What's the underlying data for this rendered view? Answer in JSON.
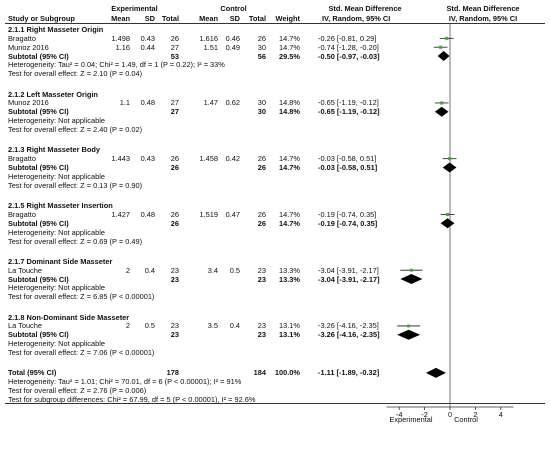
{
  "header": {
    "experimental": "Experimental",
    "control": "Control",
    "smd_left": "Std. Mean Difference",
    "smd_right": "Std. Mean Difference",
    "study_col": "Study or Subgroup",
    "mean1": "Mean",
    "sd1": "SD",
    "total1": "Total",
    "mean2": "Mean",
    "sd2": "SD",
    "total2": "Total",
    "weight": "Weight",
    "ci_left": "IV, Random, 95% CI",
    "ci_right": "IV, Random, 95% CI"
  },
  "rows": [
    {
      "kind": "group",
      "label": "2.1.1 Right Masseter Origin"
    },
    {
      "kind": "study",
      "label": "Bragatto",
      "m1": "1.498",
      "s1": "0.43",
      "n1": "26",
      "m2": "1.616",
      "s2": "0.46",
      "n2": "26",
      "w": "14.7%",
      "ci": "-0.26 [-0.81, 0.29]"
    },
    {
      "kind": "study",
      "label": "Munoz 2016",
      "m1": "1.16",
      "s1": "0.44",
      "n1": "27",
      "m2": "1.51",
      "s2": "0.49",
      "n2": "30",
      "w": "14.7%",
      "ci": "-0.74 [-1.28, -0.20]"
    },
    {
      "kind": "subtotal",
      "label": "Subtotal (95% CI)",
      "n1": "53",
      "n2": "56",
      "w": "29.5%",
      "ci": "-0.50 [-0.97, -0.03]"
    },
    {
      "kind": "note",
      "label": "Heterogeneity: Tau² = 0.04; Chi² = 1.49, df = 1 (P = 0.22); I² = 33%"
    },
    {
      "kind": "note",
      "label": "Test for overall effect: Z = 2.10 (P = 0.04)"
    },
    {
      "kind": "gap"
    },
    {
      "kind": "group",
      "label": "2.1.2 Left Masseter Origin"
    },
    {
      "kind": "study",
      "label": "Munoz 2016",
      "m1": "1.1",
      "s1": "0.48",
      "n1": "27",
      "m2": "1.47",
      "s2": "0.62",
      "n2": "30",
      "w": "14.8%",
      "ci": "-0.65 [-1.19, -0.12]"
    },
    {
      "kind": "subtotal",
      "label": "Subtotal (95% CI)",
      "n1": "27",
      "n2": "30",
      "w": "14.8%",
      "ci": "-0.65 [-1.19, -0.12]"
    },
    {
      "kind": "note",
      "label": "Heterogeneity: Not applicable"
    },
    {
      "kind": "note",
      "label": "Test for overall effect: Z = 2.40 (P = 0.02)"
    },
    {
      "kind": "gap"
    },
    {
      "kind": "group",
      "label": "2.1.3 Right Masseter Body"
    },
    {
      "kind": "study",
      "label": "Bragatto",
      "m1": "1.443",
      "s1": "0.43",
      "n1": "26",
      "m2": "1.458",
      "s2": "0.42",
      "n2": "26",
      "w": "14.7%",
      "ci": "-0.03 [-0.58, 0.51]"
    },
    {
      "kind": "subtotal",
      "label": "Subtotal (95% CI)",
      "n1": "26",
      "n2": "26",
      "w": "14.7%",
      "ci": "-0.03 [-0.58, 0.51]"
    },
    {
      "kind": "note",
      "label": "Heterogeneity: Not applicable"
    },
    {
      "kind": "note",
      "label": "Test for overall effect: Z = 0.13 (P = 0.90)"
    },
    {
      "kind": "gap"
    },
    {
      "kind": "group",
      "label": "2.1.5 Right Masseter Insertion"
    },
    {
      "kind": "study",
      "label": "Bragatto",
      "m1": "1.427",
      "s1": "0.48",
      "n1": "26",
      "m2": "1.519",
      "s2": "0.47",
      "n2": "26",
      "w": "14.7%",
      "ci": "-0.19 [-0.74, 0.35]"
    },
    {
      "kind": "subtotal",
      "label": "Subtotal (95% CI)",
      "n1": "26",
      "n2": "26",
      "w": "14.7%",
      "ci": "-0.19 [-0.74, 0.35]"
    },
    {
      "kind": "note",
      "label": "Heterogeneity: Not applicable"
    },
    {
      "kind": "note",
      "label": "Test for overall effect: Z = 0.69 (P = 0.49)"
    },
    {
      "kind": "gap"
    },
    {
      "kind": "group",
      "label": "2.1.7 Dominant Side Masseter"
    },
    {
      "kind": "study",
      "label": "La Touche",
      "m1": "2",
      "s1": "0.4",
      "n1": "23",
      "m2": "3.4",
      "s2": "0.5",
      "n2": "23",
      "w": "13.3%",
      "ci": "-3.04 [-3.91, -2.17]"
    },
    {
      "kind": "subtotal",
      "label": "Subtotal (95% CI)",
      "n1": "23",
      "n2": "23",
      "w": "13.3%",
      "ci": "-3.04 [-3.91, -2.17]"
    },
    {
      "kind": "note",
      "label": "Heterogeneity: Not applicable"
    },
    {
      "kind": "note",
      "label": "Test for overall effect: Z = 6.85 (P < 0.00001)"
    },
    {
      "kind": "gap"
    },
    {
      "kind": "group",
      "label": "2.1.8 Non-Dominant Side Masseter"
    },
    {
      "kind": "study",
      "label": "La Touche",
      "m1": "2",
      "s1": "0.5",
      "n1": "23",
      "m2": "3.5",
      "s2": "0.4",
      "n2": "23",
      "w": "13.1%",
      "ci": "-3.26 [-4.16, -2.35]"
    },
    {
      "kind": "subtotal",
      "label": "Subtotal (95% CI)",
      "n1": "23",
      "n2": "23",
      "w": "13.1%",
      "ci": "-3.26 [-4.16, -2.35]"
    },
    {
      "kind": "note",
      "label": "Heterogeneity: Not applicable"
    },
    {
      "kind": "note",
      "label": "Test for overall effect: Z = 7.06 (P < 0.00001)"
    },
    {
      "kind": "gap"
    },
    {
      "kind": "total",
      "label": "Total (95% CI)",
      "n1": "178",
      "n2": "184",
      "w": "100.0%",
      "ci": "-1.11 [-1.89, -0.32]"
    },
    {
      "kind": "note",
      "label": "Heterogeneity: Tau² = 1.01; Chi² = 70.01, df = 6 (P < 0.00001); I² = 91%"
    },
    {
      "kind": "note",
      "label": "Test for overall effect: Z = 2.76 (P = 0.006)"
    },
    {
      "kind": "note",
      "label": "Test for subgroup differences: Chi² = 67.99, df = 5 (P < 0.00001), I² = 92.6%"
    }
  ],
  "footer": {
    "favours_left": "Experimental",
    "favours_right": "Control"
  },
  "chart_data": {
    "type": "forest",
    "xlim": [
      -5,
      5
    ],
    "ticks": [
      -4,
      -2,
      0,
      2,
      4
    ],
    "tick_labels": [
      "-4",
      "-2",
      "0",
      "2",
      "4"
    ],
    "studies": [
      {
        "group": "2.1.1 Right Masseter Origin",
        "study": "Bragatto",
        "smd": -0.26,
        "lo": -0.81,
        "hi": 0.29,
        "weight": 14.7
      },
      {
        "group": "2.1.1 Right Masseter Origin",
        "study": "Munoz 2016",
        "smd": -0.74,
        "lo": -1.28,
        "hi": -0.2,
        "weight": 14.7
      },
      {
        "group": "2.1.2 Left Masseter Origin",
        "study": "Munoz 2016",
        "smd": -0.65,
        "lo": -1.19,
        "hi": -0.12,
        "weight": 14.8
      },
      {
        "group": "2.1.3 Right Masseter Body",
        "study": "Bragatto",
        "smd": -0.03,
        "lo": -0.58,
        "hi": 0.51,
        "weight": 14.7
      },
      {
        "group": "2.1.5 Right Masseter Insertion",
        "study": "Bragatto",
        "smd": -0.19,
        "lo": -0.74,
        "hi": 0.35,
        "weight": 14.7
      },
      {
        "group": "2.1.7 Dominant Side Masseter",
        "study": "La Touche",
        "smd": -3.04,
        "lo": -3.91,
        "hi": -2.17,
        "weight": 13.3
      },
      {
        "group": "2.1.8 Non-Dominant Side Masseter",
        "study": "La Touche",
        "smd": -3.26,
        "lo": -4.16,
        "hi": -2.35,
        "weight": 13.1
      }
    ],
    "subtotals": [
      {
        "group": "2.1.1 Right Masseter Origin",
        "smd": -0.5,
        "lo": -0.97,
        "hi": -0.03
      },
      {
        "group": "2.1.2 Left Masseter Origin",
        "smd": -0.65,
        "lo": -1.19,
        "hi": -0.12
      },
      {
        "group": "2.1.3 Right Masseter Body",
        "smd": -0.03,
        "lo": -0.58,
        "hi": 0.51
      },
      {
        "group": "2.1.5 Right Masseter Insertion",
        "smd": -0.19,
        "lo": -0.74,
        "hi": 0.35
      },
      {
        "group": "2.1.7 Dominant Side Masseter",
        "smd": -3.04,
        "lo": -3.91,
        "hi": -2.17
      },
      {
        "group": "2.1.8 Non-Dominant Side Masseter",
        "smd": -3.26,
        "lo": -4.16,
        "hi": -2.35
      }
    ],
    "overall": {
      "smd": -1.11,
      "lo": -1.89,
      "hi": -0.32
    },
    "colors": {
      "study_square": "#3aa935",
      "ci_line": "#1a1a1a",
      "diamond": "#000000"
    }
  }
}
